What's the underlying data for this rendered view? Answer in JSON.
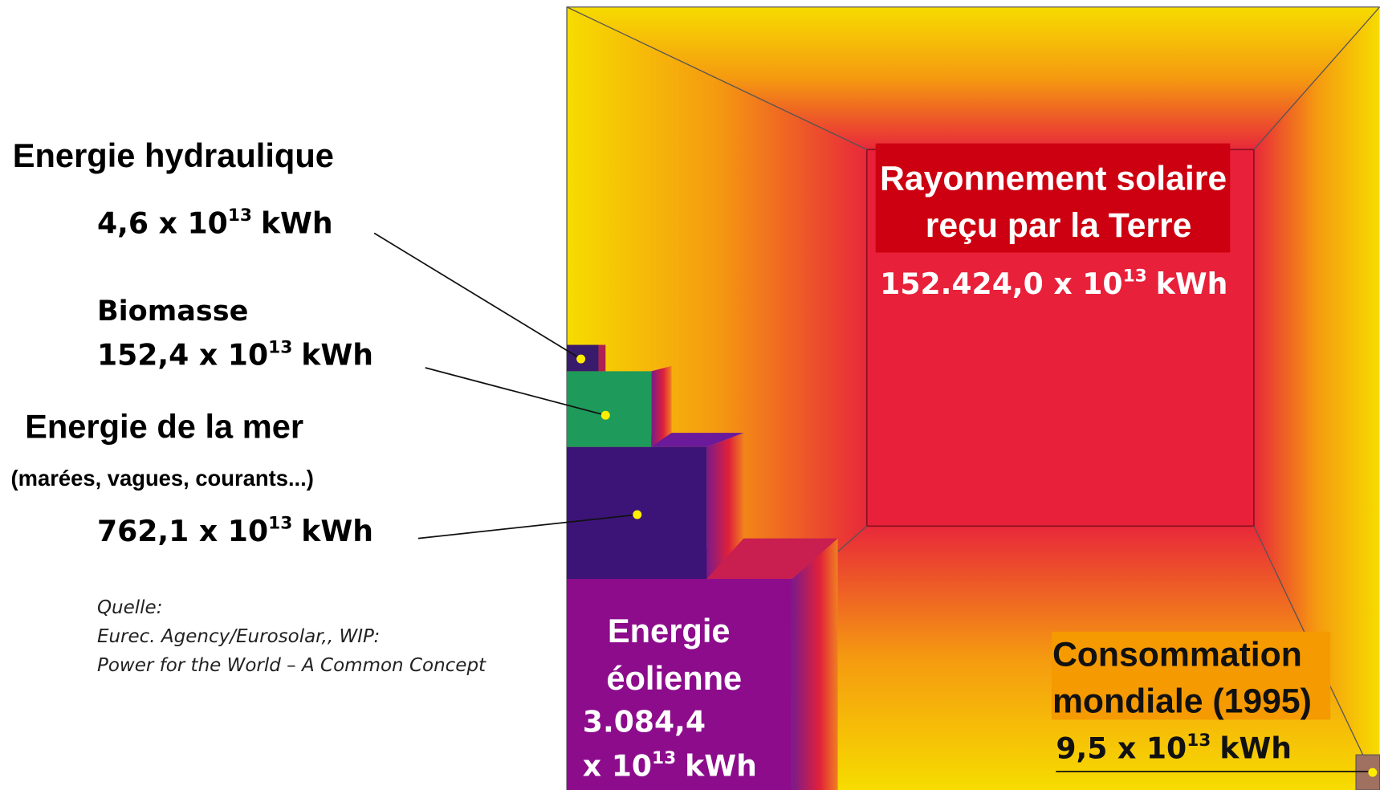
{
  "sources": [
    {
      "label": "Energie hydraulique",
      "amount": {
        "base": "4,6 x 10",
        "exponent": "13",
        "unit": "kWh"
      }
    },
    {
      "label": "Biomasse",
      "amount": {
        "base": "152,4 x 10",
        "exponent": "13",
        "unit": "kWh"
      }
    },
    {
      "label": "Energie de la mer",
      "detail": "(marées, vagues, courants...)",
      "amount": {
        "base": "762,1 x 10",
        "exponent": "13",
        "unit": "kWh"
      }
    },
    {
      "label": [
        "Energie",
        "éolienne"
      ],
      "amount": {
        "number": "3.084,4",
        "base": "x 10",
        "exponent": "13",
        "unit": "kWh"
      }
    }
  ],
  "solar": {
    "label": [
      "Rayonnement solaire",
      "reçu par la Terre"
    ],
    "amount": {
      "base": "152.424,0 x 10",
      "exponent": "13",
      "unit": "kWh"
    }
  },
  "consumption": {
    "label": [
      "Consommation",
      "mondiale (1995)"
    ],
    "amount": {
      "base": "9,5 x 10",
      "exponent": "13",
      "unit": "kWh"
    }
  },
  "source_note": [
    "Quelle:",
    "Eurec. Agency/Eurosolar,, WIP:",
    "Power for the World – A Common Concept"
  ]
}
